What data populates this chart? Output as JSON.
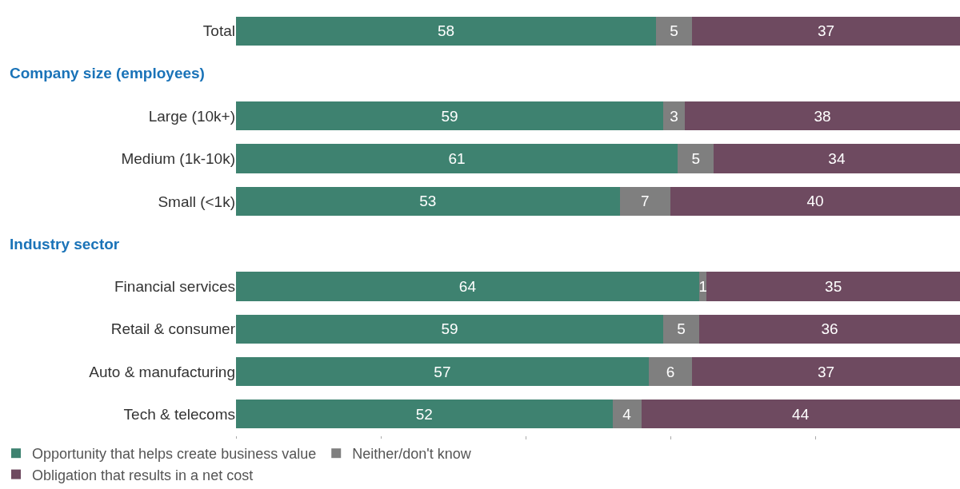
{
  "chart_data": {
    "type": "bar",
    "orientation": "horizontal",
    "stacked": true,
    "categories": [
      "Total",
      null,
      "Large (10k+)",
      "Medium (1k-10k)",
      "Small (<1k)",
      null,
      "Financial services",
      "Retail & consumer",
      "Auto & manufacturing",
      "Tech & telecoms"
    ],
    "annotations": [
      "Company size (employees)",
      "Industry sector"
    ],
    "series": [
      {
        "name": "Opportunity that helps create business value",
        "color": "#3e8270",
        "values": [
          58,
          null,
          59,
          61,
          53,
          null,
          64,
          59,
          57,
          52
        ]
      },
      {
        "name": "Neither/don't know",
        "color": "#7f7f7f",
        "values": [
          5,
          null,
          3,
          5,
          7,
          null,
          1,
          5,
          6,
          4
        ]
      },
      {
        "name": "Obligation that results in a net cost",
        "color": "#6e4a60",
        "values": [
          37,
          null,
          38,
          34,
          40,
          null,
          35,
          36,
          37,
          44
        ]
      }
    ],
    "xlim": [
      0,
      100
    ],
    "xticks": [
      {
        "value": 0,
        "label": null
      },
      {
        "value": 20,
        "label": null
      },
      {
        "value": 40,
        "label": null
      },
      {
        "value": 60,
        "label": null
      },
      {
        "value": 80,
        "label": null
      },
      {
        "value": 100,
        "label": null
      }
    ],
    "tick_labels": "y",
    "data_labels": true,
    "legend": "bottom left"
  }
}
